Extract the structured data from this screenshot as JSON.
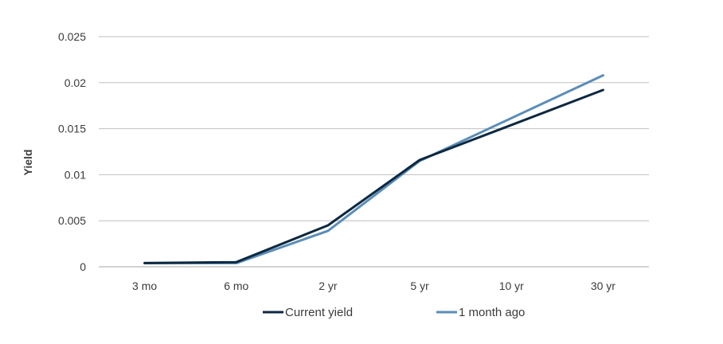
{
  "chart_data": {
    "type": "line",
    "categories": [
      "3 mo",
      "6 mo",
      "2 yr",
      "5 yr",
      "10 yr",
      "30 yr"
    ],
    "series": [
      {
        "name": "Current yield",
        "color": "#0d2840",
        "values": [
          0.0004,
          0.0005,
          0.0045,
          0.0116,
          null,
          0.0192
        ]
      },
      {
        "name": "1 month ago",
        "color": "#5b8db8",
        "values": [
          0.0004,
          0.0004,
          0.0039,
          0.0115,
          null,
          0.0208
        ]
      }
    ],
    "title": "",
    "xlabel": "",
    "ylabel": "Yield",
    "ylim": [
      0,
      0.025
    ],
    "yticks": [
      "0",
      "0.005",
      "0.01",
      "0.015",
      "0.02",
      "0.025"
    ],
    "grid": true,
    "legend_position": "bottom"
  }
}
